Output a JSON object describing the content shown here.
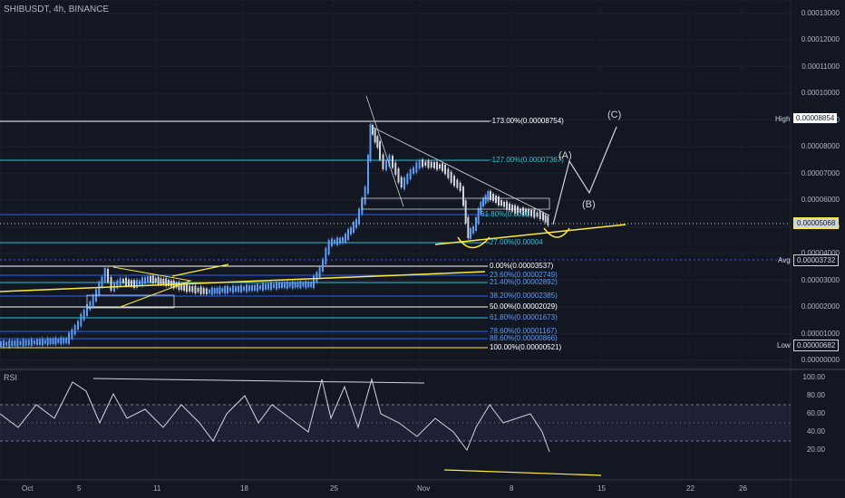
{
  "header": {
    "title": "SHIBUSDT, 4h, BINANCE"
  },
  "rsi": {
    "label": "RSI"
  },
  "price_axis": {
    "ticks": [
      "0.00013000",
      "0.00012000",
      "0.00011000",
      "0.00010000",
      "0.00009000",
      "0.00008000",
      "0.00007000",
      "0.00006000",
      "0.00005000",
      "0.00004000",
      "0.00003000",
      "0.00002000",
      "0.00001000",
      "0.00000000"
    ]
  },
  "rsi_axis": {
    "ticks": [
      "100.00",
      "80.00",
      "60.00",
      "40.00",
      "20.00"
    ]
  },
  "time_axis": {
    "ticks": [
      "Oct",
      "5",
      "11",
      "18",
      "25",
      "Nov",
      "8",
      "15",
      "22",
      "26"
    ]
  },
  "tags": {
    "high_name": "High",
    "high_value": "0.00008854",
    "current_value": "0.00005068",
    "avg_name": "Avg",
    "avg_value": "0.00003732",
    "low_name": "Low",
    "low_value": "0.00000682"
  },
  "fib_upper": [
    {
      "text": "-173.00%(0.00008754)"
    },
    {
      "text": "-127.00%(0.00007367)"
    },
    {
      "text": "61.80%(0.0000"
    },
    {
      "text": "27.00%(0.00004"
    }
  ],
  "fib_lower": [
    {
      "text": "0.00%(0.00003537)"
    },
    {
      "text": "23.60%(0.00002749)"
    },
    {
      "text": "21.40%(0.00002892)"
    },
    {
      "text": "38.20%(0.00002385)"
    },
    {
      "text": "50.00%(0.00002029)"
    },
    {
      "text": "61.80%(0.00001673)"
    },
    {
      "text": "78.60%(0.00001167)"
    },
    {
      "text": "88.60%(0.00000866)"
    },
    {
      "text": "100.00%(0.00000521)"
    }
  ],
  "waves": {
    "a": "(A)",
    "b": "(B)",
    "c": "(C)"
  },
  "colors": {
    "bg": "#131722",
    "up": "#5b9cf6",
    "down": "#d1d4dc",
    "fib_white": "#ffffff",
    "fib_blue": "#2962ff",
    "fib_teal": "#26c6da",
    "trend_yellow": "#ffeb3b",
    "rsi_band": "#7e57c2"
  }
}
